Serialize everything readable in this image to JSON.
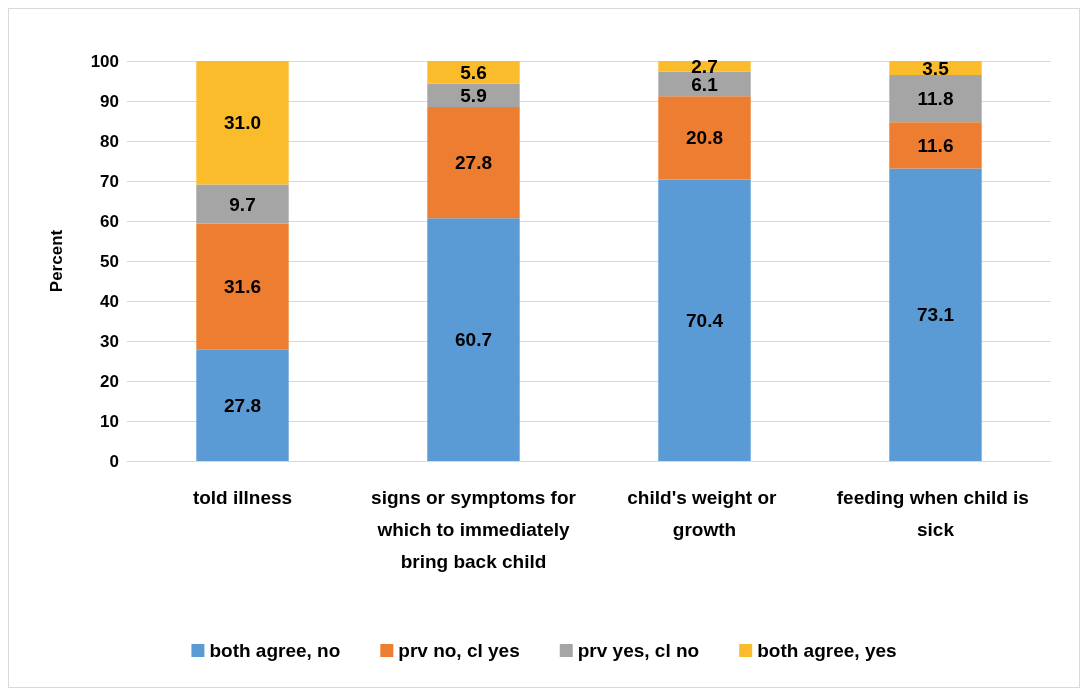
{
  "chart_data": {
    "type": "bar",
    "stacked": true,
    "ylabel": "Percent",
    "categories": [
      "told illness",
      "signs or symptoms for which to immediately bring back child",
      "child's weight or growth",
      "feeding when child is sick"
    ],
    "series": [
      {
        "name": "both agree, no",
        "color": "#5b9bd5",
        "values": [
          27.8,
          60.7,
          70.4,
          73.1
        ],
        "value_labels": [
          "27.8",
          "60.7",
          "70.4",
          "73.1"
        ]
      },
      {
        "name": "prv no, cl yes",
        "color": "#ed7d31",
        "values": [
          31.6,
          27.8,
          20.8,
          11.6
        ],
        "value_labels": [
          "31.6",
          "27.8",
          "20.8",
          "11.6"
        ]
      },
      {
        "name": "prv yes, cl no",
        "color": "#a5a5a5",
        "values": [
          9.7,
          5.9,
          6.1,
          11.8
        ],
        "value_labels": [
          "9.7",
          "5.9",
          "6.1",
          "11.8"
        ]
      },
      {
        "name": "both agree, yes",
        "color": "#fbbc2c",
        "values": [
          31.0,
          5.6,
          2.7,
          3.5
        ],
        "value_labels": [
          "31.0",
          "5.6",
          "2.7",
          "3.5"
        ]
      }
    ],
    "ylim": [
      0,
      100
    ],
    "yticks": [
      0,
      10,
      20,
      30,
      40,
      50,
      60,
      70,
      80,
      90,
      100
    ],
    "grid": "y",
    "legend": "bottom"
  }
}
